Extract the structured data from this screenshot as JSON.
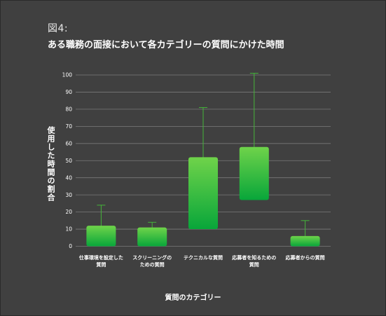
{
  "figure_label": "図4:",
  "chart_data": {
    "type": "box",
    "title": "ある職務の面接において各カテゴリーの質問にかけた時間",
    "xlabel": "質問のカテゴリー",
    "ylabel": "使用した時間の割合",
    "ylim": [
      0,
      100
    ],
    "yticks": [
      0,
      10,
      20,
      30,
      40,
      50,
      60,
      70,
      80,
      90,
      100
    ],
    "grid": true,
    "categories": [
      [
        "仕事環境を設定した",
        "質問"
      ],
      [
        "スクリーニングの",
        "ための質問"
      ],
      [
        "テクニカルな質問"
      ],
      [
        "応募者を知るための",
        "質問"
      ],
      [
        "応募者からの質問"
      ]
    ],
    "boxes": [
      {
        "min": 0,
        "q1": 0,
        "q3": 12,
        "max": 24
      },
      {
        "min": 0,
        "q1": 0,
        "q3": 11,
        "max": 14
      },
      {
        "min": 10,
        "q1": 10,
        "q3": 52,
        "max": 81
      },
      {
        "min": 27,
        "q1": 27,
        "q3": 58,
        "max": 101
      },
      {
        "min": 0,
        "q1": 0,
        "q3": 6,
        "max": 15
      }
    ],
    "colors": {
      "box_top": "#6fd34a",
      "box_bottom": "#08a63a",
      "whisker": "#45b43a",
      "grid": "#7a7a7a"
    }
  }
}
